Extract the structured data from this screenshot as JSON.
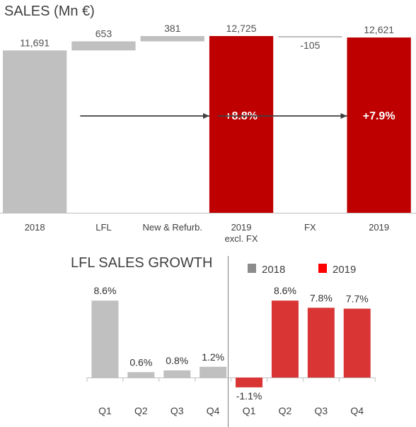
{
  "chart_data": [
    {
      "type": "bar",
      "subtype": "waterfall",
      "title": "SALES (Mn €)",
      "categories": [
        {
          "label": "2018",
          "label2": ""
        },
        {
          "label": "LFL",
          "label2": ""
        },
        {
          "label": "New & Refurb.",
          "label2": ""
        },
        {
          "label": "2019",
          "label2": "excl. FX"
        },
        {
          "label": "FX",
          "label2": ""
        },
        {
          "label": "2019",
          "label2": ""
        }
      ],
      "bars": [
        {
          "kind": "total",
          "value": 11691,
          "label": "11,691",
          "color": "#c0c0c0"
        },
        {
          "kind": "delta",
          "value": 653,
          "label": "653",
          "color": "#c0c0c0"
        },
        {
          "kind": "delta",
          "value": 381,
          "label": "381",
          "color": "#c0c0c0"
        },
        {
          "kind": "total",
          "value": 12725,
          "label": "12,725",
          "color": "#be0000"
        },
        {
          "kind": "delta",
          "value": -105,
          "label": "-105",
          "color": "#c0c0c0"
        },
        {
          "kind": "total",
          "value": 12621,
          "label": "12,621",
          "color": "#be0000"
        }
      ],
      "growth_arrows": [
        {
          "to_bar": 3,
          "label": "+8.8%"
        },
        {
          "to_bar": 5,
          "label": "+7.9%"
        }
      ],
      "ylim": [
        0,
        12725
      ]
    },
    {
      "type": "bar",
      "title": "LFL SALES GROWTH",
      "legend": [
        {
          "name": "2018",
          "color": "#8c8c8c"
        },
        {
          "name": "2019",
          "color": "#ff0000"
        }
      ],
      "series": [
        {
          "name": "2018",
          "color": "#c0c0c0",
          "categories": [
            "Q1",
            "Q2",
            "Q3",
            "Q4"
          ],
          "values": [
            8.6,
            0.6,
            0.8,
            1.2
          ],
          "labels": [
            "8.6%",
            "0.6%",
            "0.8%",
            "1.2%"
          ]
        },
        {
          "name": "2019",
          "color": "#d93535",
          "categories": [
            "Q1",
            "Q2",
            "Q3",
            "Q4"
          ],
          "values": [
            -1.1,
            8.6,
            7.8,
            7.7
          ],
          "labels": [
            "-1.1%",
            "8.6%",
            "7.8%",
            "7.7%"
          ]
        }
      ]
    }
  ]
}
